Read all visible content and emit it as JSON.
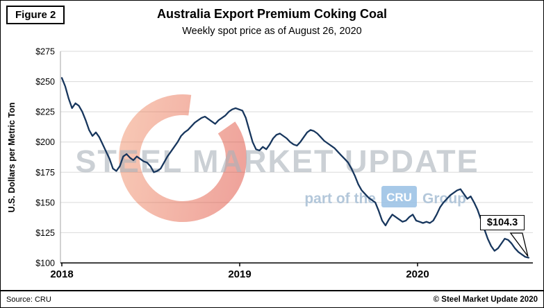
{
  "figure_label": "Figure 2",
  "watermark": {
    "main": "STEEL MARKET UPDATE",
    "sub_prefix": "part of the",
    "sub_box": "CRU",
    "sub_suffix": "Group"
  },
  "annotation": {
    "last_value_label": "$104.3"
  },
  "footer": {
    "source": "Source: CRU",
    "copyright": "© Steel Market Update 2020"
  },
  "chart_data": {
    "type": "line",
    "title": "Australia Export Premium Coking Coal",
    "subtitle": "Weekly spot price as of August 26, 2020",
    "ylabel": "U.S. Dollars per Metric Ton",
    "ylim": [
      100,
      275
    ],
    "yticks": [
      100,
      125,
      150,
      175,
      200,
      225,
      250,
      275
    ],
    "ytick_prefix": "$",
    "xticks": [
      2018,
      2019,
      2020
    ],
    "x_start": 2018.0,
    "x_step_years": 0.0191571,
    "grid": "horizontal",
    "legend": "none",
    "last_point": {
      "date": "August 26, 2020",
      "value": 104.3
    },
    "series": [
      {
        "name": "Weekly spot price (USD per metric ton)",
        "color": "#17365d",
        "values": [
          253,
          246,
          236,
          228,
          232,
          230,
          225,
          218,
          210,
          205,
          208,
          204,
          198,
          192,
          186,
          178,
          176,
          180,
          188,
          190,
          187,
          185,
          188,
          186,
          184,
          183,
          180,
          175,
          176,
          178,
          183,
          188,
          192,
          196,
          200,
          205,
          208,
          210,
          213,
          216,
          218,
          220,
          221,
          219,
          217,
          215,
          218,
          220,
          222,
          225,
          227,
          228,
          227,
          226,
          220,
          210,
          200,
          194,
          193,
          196,
          194,
          198,
          203,
          206,
          207,
          205,
          203,
          200,
          198,
          197,
          200,
          204,
          208,
          210,
          209,
          207,
          204,
          201,
          199,
          197,
          195,
          192,
          189,
          186,
          183,
          178,
          172,
          165,
          160,
          157,
          154,
          152,
          150,
          143,
          135,
          131,
          136,
          140,
          138,
          136,
          134,
          135,
          138,
          140,
          135,
          134,
          133,
          134,
          133,
          135,
          140,
          146,
          150,
          153,
          156,
          158,
          160,
          161,
          157,
          153,
          155,
          150,
          144,
          136,
          128,
          120,
          114,
          110,
          112,
          116,
          120,
          119,
          116,
          112,
          109,
          107,
          105,
          104.3
        ]
      }
    ]
  }
}
